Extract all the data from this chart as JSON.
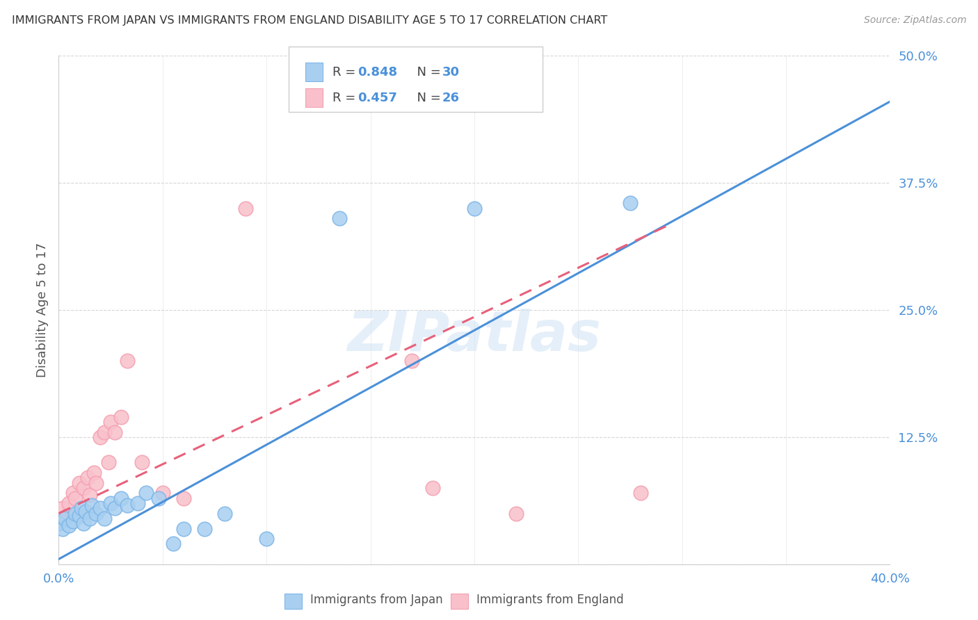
{
  "title": "IMMIGRANTS FROM JAPAN VS IMMIGRANTS FROM ENGLAND DISABILITY AGE 5 TO 17 CORRELATION CHART",
  "source": "Source: ZipAtlas.com",
  "ylabel": "Disability Age 5 to 17",
  "xlim": [
    0.0,
    0.4
  ],
  "ylim": [
    0.0,
    0.5
  ],
  "yticks": [
    0.0,
    0.125,
    0.25,
    0.375,
    0.5
  ],
  "ytick_labels": [
    "",
    "12.5%",
    "25.0%",
    "37.5%",
    "50.0%"
  ],
  "xticks": [
    0.0,
    0.05,
    0.1,
    0.15,
    0.2,
    0.25,
    0.3,
    0.35,
    0.4
  ],
  "watermark": "ZIPatlas",
  "japan_color": "#a8cff0",
  "japan_edge_color": "#7eb6e8",
  "england_color": "#f9c0cb",
  "england_edge_color": "#f4a0b0",
  "japan_R": 0.848,
  "japan_N": 30,
  "england_R": 0.457,
  "england_N": 26,
  "japan_scatter_x": [
    0.0,
    0.002,
    0.003,
    0.005,
    0.007,
    0.008,
    0.01,
    0.011,
    0.012,
    0.013,
    0.015,
    0.016,
    0.018,
    0.02,
    0.022,
    0.025,
    0.027,
    0.03,
    0.033,
    0.038,
    0.042,
    0.048,
    0.055,
    0.06,
    0.07,
    0.08,
    0.1,
    0.135,
    0.2,
    0.275
  ],
  "japan_scatter_y": [
    0.04,
    0.035,
    0.045,
    0.038,
    0.042,
    0.05,
    0.048,
    0.055,
    0.04,
    0.052,
    0.045,
    0.058,
    0.05,
    0.055,
    0.045,
    0.06,
    0.055,
    0.065,
    0.058,
    0.06,
    0.07,
    0.065,
    0.02,
    0.035,
    0.035,
    0.05,
    0.025,
    0.34,
    0.35,
    0.355
  ],
  "england_scatter_x": [
    0.0,
    0.002,
    0.004,
    0.005,
    0.007,
    0.008,
    0.01,
    0.012,
    0.014,
    0.015,
    0.017,
    0.018,
    0.02,
    0.022,
    0.024,
    0.025,
    0.027,
    0.03,
    0.033,
    0.04,
    0.05,
    0.06,
    0.18,
    0.22,
    0.28
  ],
  "england_scatter_y": [
    0.04,
    0.055,
    0.048,
    0.06,
    0.07,
    0.065,
    0.08,
    0.075,
    0.085,
    0.068,
    0.09,
    0.08,
    0.125,
    0.13,
    0.1,
    0.14,
    0.13,
    0.145,
    0.2,
    0.1,
    0.07,
    0.065,
    0.075,
    0.05,
    0.07
  ],
  "england_outlier_x": [
    0.09
  ],
  "england_outlier_y": [
    0.35
  ],
  "england_outlier2_x": [
    0.17
  ],
  "england_outlier2_y": [
    0.2
  ],
  "japan_trendline_x": [
    0.0,
    0.4
  ],
  "japan_trendline_y": [
    0.005,
    0.455
  ],
  "england_trendline_x": [
    0.0,
    0.295
  ],
  "england_trendline_y": [
    0.05,
    0.335
  ],
  "japan_trend_color": "#4a90d9",
  "england_trend_color": "#e8607a",
  "england_trend_dashed": true,
  "background_color": "#ffffff",
  "grid_color": "#cccccc",
  "axis_color": "#cccccc",
  "title_color": "#333333",
  "tick_color": "#4a90d9",
  "legend_label_japan": "Immigrants from Japan",
  "legend_label_england": "Immigrants from England"
}
